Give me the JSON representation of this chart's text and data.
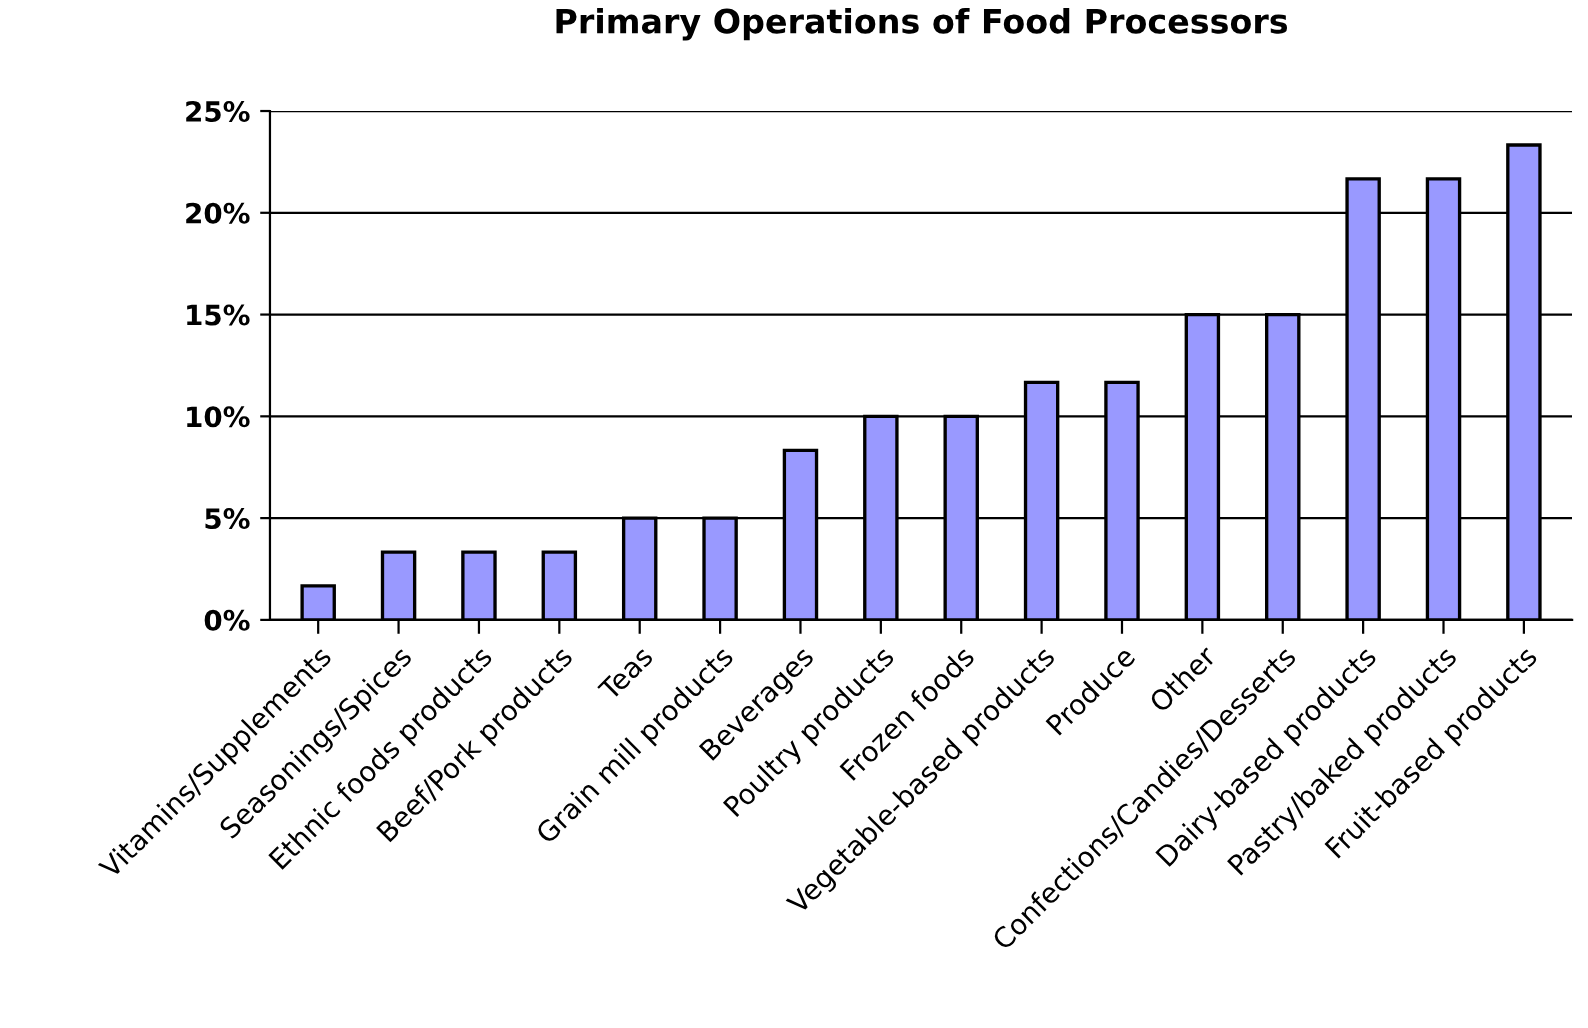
{
  "chart_data": {
    "type": "bar",
    "title": "Primary Operations of Food Processors",
    "categories": [
      "Vitamins/Supplements",
      "Seasonings/Spices",
      "Ethnic foods products",
      "Beef/Pork products",
      "Teas",
      "Grain mill products",
      "Beverages",
      "Poultry products",
      "Frozen foods",
      "Vegetable-based products",
      "Produce",
      "Other",
      "Confections/Candies/Desserts",
      "Dairy-based products",
      "Pastry/baked products",
      "Fruit-based products"
    ],
    "values": [
      1.67,
      3.33,
      3.33,
      3.33,
      5,
      5,
      8.33,
      10,
      10,
      11.67,
      11.67,
      15,
      15,
      21.67,
      21.67,
      23.33
    ],
    "color": "#9999ff",
    "ylim": [
      0,
      25
    ],
    "yticks": [
      {
        "value": 0,
        "label": "0%"
      },
      {
        "value": 5,
        "label": "5%"
      },
      {
        "value": 10,
        "label": "10%"
      },
      {
        "value": 15,
        "label": "15%"
      },
      {
        "value": 20,
        "label": "20%"
      },
      {
        "value": 25,
        "label": "25%"
      }
    ],
    "grid": "y"
  }
}
